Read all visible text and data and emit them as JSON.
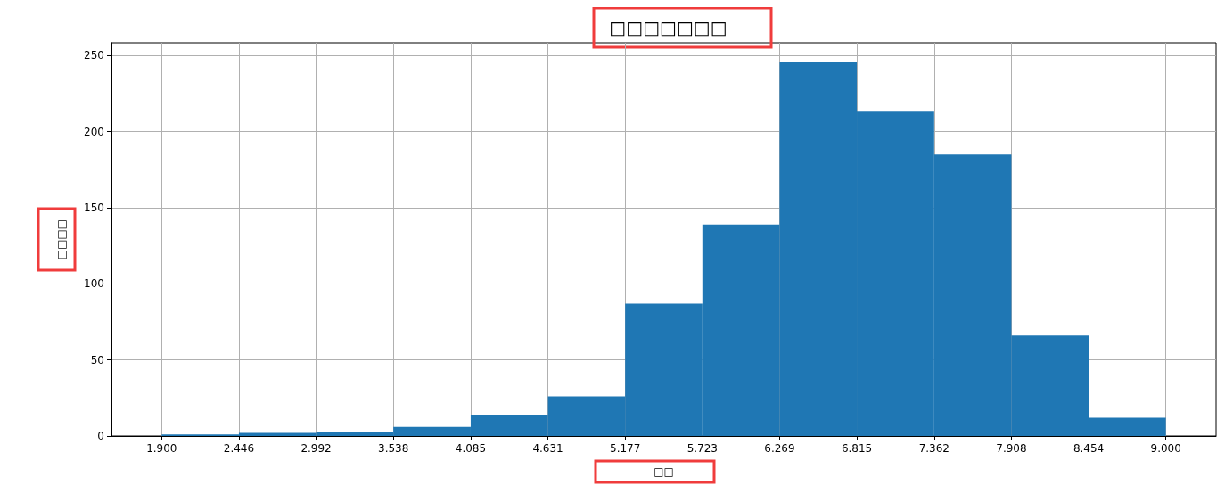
{
  "chart_data": {
    "type": "histogram",
    "title": "□□□□□□□",
    "xlabel": "□□",
    "ylabel": "□□□□",
    "bins": [
      1.9,
      2.446,
      2.992,
      3.538,
      4.085,
      4.631,
      5.177,
      5.723,
      6.269,
      6.815,
      7.362,
      7.908,
      8.454,
      9.0
    ],
    "values": [
      1,
      2,
      3,
      6,
      14,
      26,
      87,
      139,
      246,
      213,
      185,
      66,
      12
    ],
    "color": "#1f77b4",
    "xlim": [
      1.545,
      9.355
    ],
    "xticks": [
      {
        "value": 1.9,
        "label": "1.900"
      },
      {
        "value": 2.446,
        "label": "2.446"
      },
      {
        "value": 2.992,
        "label": "2.992"
      },
      {
        "value": 3.538,
        "label": "3.538"
      },
      {
        "value": 4.085,
        "label": "4.085"
      },
      {
        "value": 4.631,
        "label": "4.631"
      },
      {
        "value": 5.177,
        "label": "5.177"
      },
      {
        "value": 5.723,
        "label": "5.723"
      },
      {
        "value": 6.269,
        "label": "6.269"
      },
      {
        "value": 6.815,
        "label": "6.815"
      },
      {
        "value": 7.362,
        "label": "7.362"
      },
      {
        "value": 7.908,
        "label": "7.908"
      },
      {
        "value": 8.454,
        "label": "8.454"
      },
      {
        "value": 9.0,
        "label": "9.000"
      }
    ],
    "ylim": [
      0,
      258.3
    ],
    "yticks": [
      0,
      50,
      100,
      150,
      200,
      250
    ],
    "grid": true
  }
}
